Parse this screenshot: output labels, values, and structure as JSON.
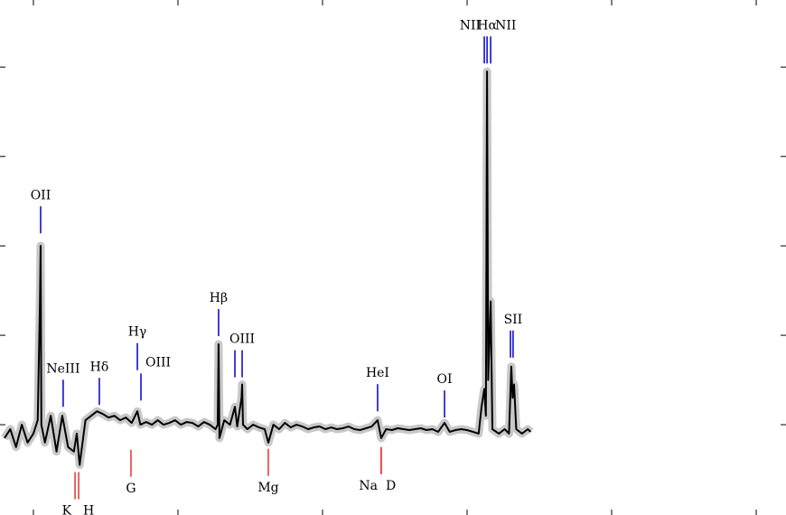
{
  "chart_data": {
    "type": "line",
    "x": [
      3800,
      3840,
      3880,
      3920,
      3960,
      4000,
      4030,
      4045,
      4050,
      4055,
      4080,
      4120,
      4160,
      4200,
      4240,
      4280,
      4300,
      4320,
      4360,
      4400,
      4440,
      4480,
      4520,
      4560,
      4600,
      4640,
      4680,
      4719,
      4740,
      4780,
      4820,
      4860,
      4900,
      4940,
      4980,
      5020,
      5060,
      5100,
      5140,
      5180,
      5220,
      5260,
      5275,
      5281,
      5287,
      5320,
      5360,
      5394,
      5410,
      5440,
      5444,
      5450,
      5480,
      5520,
      5560,
      5600,
      5625,
      5660,
      5700,
      5740,
      5780,
      5820,
      5860,
      5900,
      5940,
      5980,
      6020,
      6060,
      6100,
      6140,
      6180,
      6220,
      6260,
      6300,
      6340,
      6381,
      6406,
      6440,
      6480,
      6520,
      6560,
      6600,
      6640,
      6680,
      6720,
      6760,
      6800,
      6844,
      6880,
      6920,
      6960,
      7000,
      7040,
      7080,
      7100,
      7119,
      7130,
      7138,
      7146,
      7163,
      7175,
      7220,
      7260,
      7290,
      7306,
      7315,
      7325,
      7340,
      7380,
      7420,
      7440
    ],
    "series": [
      {
        "color": "#000000",
        "values": [
          -0.15,
          -0.05,
          -0.25,
          0.0,
          -0.2,
          -0.1,
          0.05,
          1.35,
          2.0,
          0.0,
          -0.2,
          0.1,
          -0.3,
          0.1,
          -0.25,
          -0.3,
          -0.1,
          -0.45,
          0.05,
          0.1,
          0.15,
          0.12,
          0.08,
          0.1,
          0.05,
          0.08,
          0.02,
          0.15,
          0.0,
          0.03,
          0.0,
          0.05,
          0.0,
          0.02,
          0.05,
          0.0,
          0.03,
          0.02,
          -0.02,
          0.03,
          0.0,
          -0.05,
          0.0,
          0.9,
          -0.15,
          0.05,
          0.0,
          0.2,
          -0.02,
          0.3,
          0.45,
          0.0,
          -0.05,
          0.0,
          -0.03,
          -0.05,
          -0.2,
          0.0,
          -0.05,
          0.02,
          -0.03,
          0.0,
          -0.02,
          -0.05,
          -0.03,
          -0.02,
          -0.05,
          -0.03,
          -0.05,
          -0.04,
          -0.02,
          -0.05,
          -0.06,
          -0.04,
          -0.02,
          0.05,
          -0.15,
          -0.05,
          -0.06,
          -0.04,
          -0.05,
          -0.06,
          -0.05,
          -0.04,
          -0.06,
          -0.05,
          -0.08,
          0.02,
          -0.08,
          -0.06,
          -0.05,
          -0.06,
          -0.08,
          -0.1,
          0.2,
          0.4,
          0.1,
          3.95,
          0.5,
          1.38,
          -0.05,
          -0.1,
          -0.05,
          -0.1,
          0.65,
          0.3,
          0.45,
          -0.05,
          -0.1,
          -0.05,
          -0.08
        ]
      }
    ],
    "xlim": [
      3769,
      9206
    ],
    "ylim": [
      -1.01,
      4.75
    ],
    "xticks": [
      4000,
      5000,
      6000,
      7000,
      8000,
      9000
    ],
    "yticks": [
      0,
      1,
      2,
      3,
      4
    ],
    "emission_color": "#0000cc",
    "absorption_color": "#dd0000",
    "emission_lines": [
      {
        "label": "OII",
        "x": 4050,
        "y": 2.14,
        "anchor": "middle"
      },
      {
        "label": "NeIII",
        "x": 4206,
        "y": 0.2,
        "anchor": "middle"
      },
      {
        "label": "Hδ",
        "x": 4456,
        "y": 0.22,
        "anchor": "middle"
      },
      {
        "label": "Hγ",
        "x": 4719,
        "y": 0.61,
        "anchor": "middle"
      },
      {
        "label": "OIII",
        "x": 4744,
        "y": 0.27,
        "anchor": "start"
      },
      {
        "label": "Hβ",
        "x": 5281,
        "y": 0.99,
        "anchor": "middle"
      },
      {
        "label": null,
        "x": 5394,
        "y": 0.53,
        "anchor": "middle"
      },
      {
        "label": "OIII",
        "x": 5444,
        "y": 0.53,
        "anchor": "middle"
      },
      {
        "label": "HeI",
        "x": 6381,
        "y": 0.15,
        "anchor": "middle"
      },
      {
        "label": "OI",
        "x": 6844,
        "y": 0.08,
        "anchor": "middle"
      },
      {
        "label": "NII",
        "x": 7119,
        "y": 4.04,
        "anchor": "end"
      },
      {
        "label": "Hα",
        "x": 7138,
        "y": 4.04,
        "anchor": "middle"
      },
      {
        "label": "NII",
        "x": 7163,
        "y": 4.04,
        "anchor": "start"
      },
      {
        "label": null,
        "x": 7300,
        "y": 0.75,
        "anchor": "middle"
      },
      {
        "label": "SII",
        "x": 7318,
        "y": 0.75,
        "anchor": "middle"
      }
    ],
    "absorption_lines": [
      {
        "label": "K",
        "x": 4288,
        "y": -0.53,
        "anchor": "end"
      },
      {
        "label": "H",
        "x": 4313,
        "y": -0.53,
        "anchor": "start"
      },
      {
        "label": "G",
        "x": 4675,
        "y": -0.28,
        "anchor": "middle"
      },
      {
        "label": "Mg",
        "x": 5625,
        "y": -0.27,
        "anchor": "middle"
      },
      {
        "label": "Na",
        "x": 6406,
        "y": -0.25,
        "anchor": "end"
      },
      {
        "label": "D",
        "x": 6406,
        "y": -0.25,
        "anchor": "start"
      }
    ]
  }
}
